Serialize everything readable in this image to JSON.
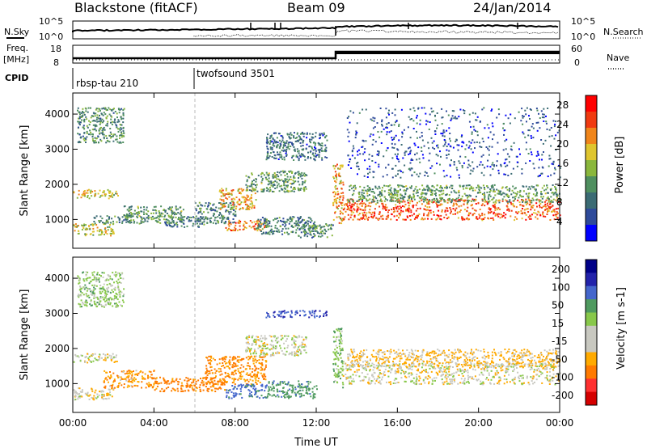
{
  "header": {
    "station": "Blackstone (fitACF)",
    "beam": "Beam 09",
    "date": "24/Jan/2014"
  },
  "side_labels": {
    "nsky": "N.Sky",
    "nsearch": "N.Search",
    "freq": "Freq.",
    "freq_unit": "[MHz]",
    "nave": "Nave",
    "cpid": "CPID"
  },
  "noise_panel": {
    "left_ticks": [
      "10^5",
      "10^0"
    ],
    "right_ticks": [
      "10^5",
      "10^0"
    ]
  },
  "freq_panel": {
    "left_ticks": [
      "18",
      "8"
    ],
    "right_ticks": [
      "60",
      "0"
    ]
  },
  "cpid": {
    "segments": [
      {
        "label": "rbsp-tau 210",
        "start_hour": 0
      },
      {
        "label": "twofsound 3501",
        "start_hour": 6
      }
    ]
  },
  "colors": {
    "power_scale": [
      "#0000ff",
      "#2e4a9a",
      "#3b6b74",
      "#4f8f5f",
      "#8ab73c",
      "#dfc52e",
      "#f0851a",
      "#f03a10",
      "#ff0000"
    ],
    "velocity_scale": [
      "#d50000",
      "#ff3030",
      "#ff7a00",
      "#ffaa00",
      "#c8c8c0",
      "#c8c8c0",
      "#88c84a",
      "#4f9a5f",
      "#4466cc",
      "#2222aa",
      "#000088"
    ]
  },
  "chart_data": [
    {
      "type": "heatmap",
      "name": "power",
      "title": "",
      "xlabel": "",
      "ylabel": "Slant Range [km]",
      "xlim": [
        0,
        24
      ],
      "ylim": [
        180,
        4600
      ],
      "x_ticks": [],
      "y_ticks": [
        "1000",
        "2000",
        "3000",
        "4000"
      ],
      "y_tick_values": [
        1000,
        2000,
        3000,
        4000
      ],
      "colorbar": {
        "label": "Power [dB]",
        "ticks": [
          "4",
          "8",
          "12",
          "16",
          "20",
          "24",
          "28"
        ],
        "range": [
          0,
          30
        ]
      },
      "regions": [
        {
          "t": [
            0.0,
            2.2
          ],
          "r": [
            1620,
            1870
          ],
          "v": 18
        },
        {
          "t": [
            0.0,
            2.0
          ],
          "r": [
            550,
            900
          ],
          "v": 17
        },
        {
          "t": [
            1.0,
            3.0
          ],
          "r": [
            900,
            1150
          ],
          "v": 10
        },
        {
          "t": [
            2.5,
            5.5
          ],
          "r": [
            900,
            1400
          ],
          "v": 12
        },
        {
          "t": [
            4.5,
            6.5
          ],
          "r": [
            800,
            1100
          ],
          "v": 9
        },
        {
          "t": [
            6.0,
            8.0
          ],
          "r": [
            900,
            1500
          ],
          "v": 10
        },
        {
          "t": [
            7.2,
            9.0
          ],
          "r": [
            1300,
            1900
          ],
          "v": 20
        },
        {
          "t": [
            7.5,
            9.5
          ],
          "r": [
            700,
            1000
          ],
          "v": 22
        },
        {
          "t": [
            8.5,
            11.5
          ],
          "r": [
            1800,
            2400
          ],
          "v": 12
        },
        {
          "t": [
            9.0,
            12.0
          ],
          "r": [
            600,
            1100
          ],
          "v": 9
        },
        {
          "t": [
            11.0,
            12.8
          ],
          "r": [
            500,
            900
          ],
          "v": 11
        },
        {
          "t": [
            12.8,
            13.3
          ],
          "r": [
            900,
            2600
          ],
          "v": 20
        },
        {
          "t": [
            13.3,
            24.0
          ],
          "r": [
            1000,
            1600
          ],
          "v": 24
        },
        {
          "t": [
            13.5,
            24.0
          ],
          "r": [
            1500,
            2000
          ],
          "v": 12
        },
        {
          "t": [
            0.2,
            2.5
          ],
          "r": [
            3200,
            4200
          ],
          "v": 11
        },
        {
          "t": [
            9.5,
            12.5
          ],
          "r": [
            2700,
            3500
          ],
          "v": 8
        },
        {
          "t": [
            13.5,
            24.0
          ],
          "r": [
            2200,
            4200
          ],
          "v": 6
        }
      ]
    },
    {
      "type": "heatmap",
      "name": "velocity",
      "title": "",
      "xlabel": "Time UT",
      "ylabel": "Slant Range [km]",
      "xlim": [
        0,
        24
      ],
      "ylim": [
        180,
        4600
      ],
      "x_ticks": [
        "00:00",
        "04:00",
        "08:00",
        "12:00",
        "16:00",
        "20:00",
        "00:00"
      ],
      "x_tick_values": [
        0,
        4,
        8,
        12,
        16,
        20,
        24
      ],
      "y_ticks": [
        "1000",
        "2000",
        "3000",
        "4000"
      ],
      "y_tick_values": [
        1000,
        2000,
        3000,
        4000
      ],
      "colorbar": {
        "label": "Velocity [m s-1]",
        "ticks": [
          "200",
          "100",
          "50",
          "15",
          "-15",
          "-50",
          "-100",
          "-200"
        ]
      },
      "regions": [
        {
          "t": [
            0.0,
            2.2
          ],
          "r": [
            1620,
            1870
          ],
          "v": 0
        },
        {
          "t": [
            0.0,
            2.0
          ],
          "r": [
            550,
            900
          ],
          "v": -5
        },
        {
          "t": [
            1.5,
            4.0
          ],
          "r": [
            900,
            1400
          ],
          "v": -40
        },
        {
          "t": [
            4.0,
            7.5
          ],
          "r": [
            800,
            1200
          ],
          "v": -70
        },
        {
          "t": [
            6.5,
            9.5
          ],
          "r": [
            1000,
            1800
          ],
          "v": -60
        },
        {
          "t": [
            7.5,
            9.5
          ],
          "r": [
            600,
            1000
          ],
          "v": 120
        },
        {
          "t": [
            8.5,
            11.5
          ],
          "r": [
            1800,
            2400
          ],
          "v": 5
        },
        {
          "t": [
            9.5,
            12.0
          ],
          "r": [
            600,
            1100
          ],
          "v": 80
        },
        {
          "t": [
            12.8,
            13.3
          ],
          "r": [
            900,
            2600
          ],
          "v": 40
        },
        {
          "t": [
            13.3,
            24.0
          ],
          "r": [
            1000,
            1600
          ],
          "v": 0
        },
        {
          "t": [
            13.5,
            24.0
          ],
          "r": [
            1500,
            2000
          ],
          "v": -20
        },
        {
          "t": [
            9.5,
            12.5
          ],
          "r": [
            2900,
            3100
          ],
          "v": 150
        },
        {
          "t": [
            0.2,
            2.5
          ],
          "r": [
            3200,
            4200
          ],
          "v": 30
        }
      ]
    }
  ],
  "noise_series": {
    "type": "line",
    "x_range": [
      0,
      24
    ],
    "note_values": []
  }
}
